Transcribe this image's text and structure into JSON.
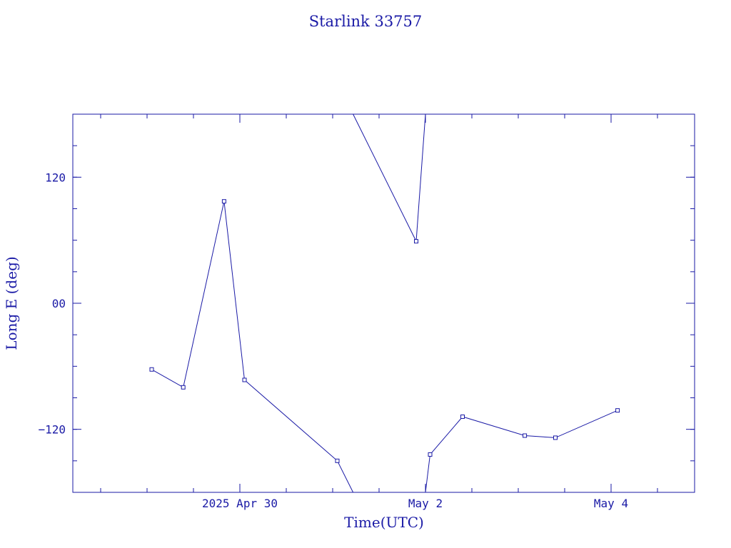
{
  "chart_data": {
    "type": "line",
    "title": "Starlink 33757",
    "xlabel": "Time(UTC)",
    "ylabel": "Long E (deg)",
    "x_ticks": [
      {
        "label": "2025 Apr 30",
        "day": 1.0
      },
      {
        "label": "May  2",
        "day": 3.0
      },
      {
        "label": "May  4",
        "day": 5.0
      }
    ],
    "y_ticks": [
      {
        "label": "120",
        "value": 120
      },
      {
        "label": "00",
        "value": 0
      },
      {
        "label": "−120",
        "value": -120
      }
    ],
    "xlim": [
      -0.8,
      5.9
    ],
    "ylim": [
      -180,
      180
    ],
    "x_unit": "days relative to 2025 Apr 29 00:00 UTC",
    "series": [
      {
        "color": "#1a1aa6",
        "points": [
          {
            "x": 0.05,
            "y": -63
          },
          {
            "x": 0.39,
            "y": -80
          },
          {
            "x": 0.83,
            "y": 97
          },
          {
            "x": 1.05,
            "y": -73
          },
          {
            "x": 2.05,
            "y": -150
          },
          {
            "x": 2.22,
            "y": -180,
            "wrap": true
          },
          {
            "x": 2.22,
            "y": 180,
            "wrap": true
          },
          {
            "x": 2.9,
            "y": 59
          },
          {
            "x": 3.0,
            "y": 180,
            "wrap": true
          },
          {
            "x": 3.0,
            "y": -180,
            "wrap": true
          },
          {
            "x": 3.05,
            "y": -144
          },
          {
            "x": 3.4,
            "y": -108
          },
          {
            "x": 4.07,
            "y": -126
          },
          {
            "x": 4.4,
            "y": -128
          },
          {
            "x": 5.07,
            "y": -102
          }
        ]
      }
    ]
  }
}
